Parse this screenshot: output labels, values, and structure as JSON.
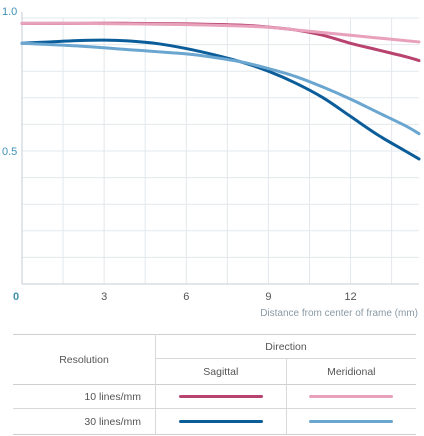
{
  "chart_data": {
    "type": "line",
    "xlabel": "Distance from center of frame (mm)",
    "ylabel": "",
    "xlim": [
      0,
      14.5
    ],
    "ylim": [
      0,
      1.0
    ],
    "x_ticks": [
      0,
      3,
      6,
      9,
      12
    ],
    "y_ticks": [
      0.5,
      1.0
    ],
    "x_tick_labels": [
      "0",
      "3",
      "6",
      "9",
      "12"
    ],
    "y_tick_labels": [
      "0.5",
      "1.0"
    ],
    "grid": true,
    "series": [
      {
        "name": "10 lines/mm Sagittal",
        "color": "#b8436e",
        "x": [
          0,
          2,
          4,
          6,
          8,
          9,
          10,
          11,
          12,
          13,
          14,
          14.5
        ],
        "y": [
          0.98,
          0.98,
          0.98,
          0.978,
          0.973,
          0.966,
          0.955,
          0.935,
          0.905,
          0.88,
          0.855,
          0.84
        ]
      },
      {
        "name": "10 lines/mm Meridional",
        "color": "#e8a1bb",
        "x": [
          0,
          2,
          4,
          6,
          8,
          9,
          10,
          11,
          12,
          13,
          14,
          14.5
        ],
        "y": [
          0.98,
          0.98,
          0.978,
          0.975,
          0.97,
          0.965,
          0.955,
          0.945,
          0.935,
          0.925,
          0.915,
          0.91
        ]
      },
      {
        "name": "30 lines/mm Sagittal",
        "color": "#0b5d9a",
        "x": [
          0,
          1,
          2,
          3,
          4,
          5,
          6,
          7,
          8,
          9,
          10,
          11,
          12,
          13,
          14,
          14.5
        ],
        "y": [
          0.905,
          0.91,
          0.915,
          0.917,
          0.913,
          0.903,
          0.885,
          0.862,
          0.835,
          0.8,
          0.755,
          0.7,
          0.63,
          0.56,
          0.5,
          0.47
        ]
      },
      {
        "name": "30 lines/mm Meridional",
        "color": "#6aa6d0",
        "x": [
          0,
          2,
          4,
          6,
          7,
          8,
          9,
          10,
          11,
          12,
          13,
          14,
          14.5
        ],
        "y": [
          0.905,
          0.895,
          0.88,
          0.865,
          0.852,
          0.835,
          0.81,
          0.78,
          0.74,
          0.695,
          0.645,
          0.595,
          0.565
        ]
      }
    ]
  },
  "legend": {
    "row_header": "Resolution",
    "direction_header": "Direction",
    "col_sagittal": "Sagittal",
    "col_meridional": "Meridional",
    "row1_label": "10 lines/mm",
    "row2_label": "30 lines/mm"
  }
}
